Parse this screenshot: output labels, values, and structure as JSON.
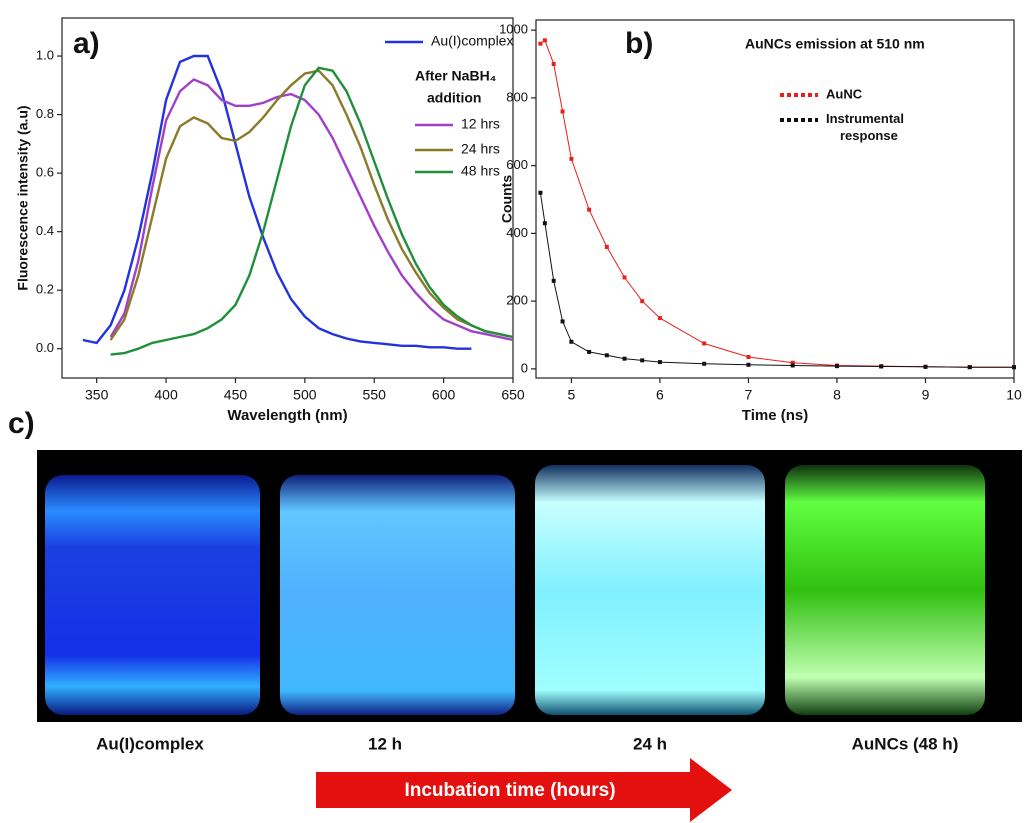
{
  "chart_data": [
    {
      "type": "line",
      "panel_label": "a)",
      "x_label": "Wavelength (nm)",
      "y_label": "Fluorescence intensity (a.u)",
      "xlim": [
        325,
        650
      ],
      "xticks": [
        350,
        400,
        450,
        500,
        550,
        600,
        650
      ],
      "ylim": [
        -0.1,
        1.13
      ],
      "yticks": [
        {
          "value": 0,
          "label": "0.0"
        },
        0.2,
        0.4,
        0.6,
        0.8,
        {
          "value": 1,
          "label": "1.0"
        }
      ],
      "legend_title": [
        "After NaBH₄",
        "addition"
      ],
      "x": [
        340,
        350,
        360,
        370,
        380,
        390,
        400,
        410,
        420,
        430,
        440,
        450,
        460,
        470,
        480,
        490,
        500,
        510,
        520,
        530,
        540,
        550,
        560,
        570,
        580,
        590,
        600,
        610,
        620,
        630,
        640,
        650
      ],
      "series": [
        {
          "name": "Au(I)complex",
          "color": "#2233dd",
          "values": [
            0.03,
            0.02,
            0.08,
            0.2,
            0.38,
            0.6,
            0.85,
            0.98,
            1.0,
            1.0,
            0.88,
            0.7,
            0.52,
            0.38,
            0.26,
            0.17,
            0.11,
            0.07,
            0.05,
            0.035,
            0.025,
            0.02,
            0.015,
            0.01,
            0.01,
            0.005,
            0.005,
            0.0,
            0.0,
            null,
            null,
            null
          ]
        },
        {
          "name": "12 hrs",
          "color": "#a040c8",
          "values": [
            null,
            null,
            0.04,
            0.12,
            0.3,
            0.55,
            0.78,
            0.88,
            0.92,
            0.9,
            0.85,
            0.83,
            0.83,
            0.84,
            0.86,
            0.87,
            0.85,
            0.8,
            0.72,
            0.62,
            0.52,
            0.42,
            0.33,
            0.25,
            0.19,
            0.14,
            0.1,
            0.08,
            0.06,
            0.05,
            0.04,
            0.03
          ]
        },
        {
          "name": "24 hrs",
          "color": "#8a7a2a",
          "values": [
            null,
            null,
            0.03,
            0.1,
            0.25,
            0.45,
            0.65,
            0.76,
            0.79,
            0.77,
            0.72,
            0.71,
            0.74,
            0.79,
            0.85,
            0.9,
            0.94,
            0.95,
            0.9,
            0.8,
            0.69,
            0.56,
            0.44,
            0.34,
            0.26,
            0.19,
            0.14,
            0.1,
            0.08,
            0.06,
            0.05,
            0.04
          ]
        },
        {
          "name": "48 hrs",
          "color": "#1f8f3a",
          "values": [
            null,
            null,
            -0.02,
            -0.015,
            0.0,
            0.02,
            0.03,
            0.04,
            0.05,
            0.07,
            0.1,
            0.15,
            0.25,
            0.4,
            0.58,
            0.76,
            0.9,
            0.96,
            0.95,
            0.88,
            0.77,
            0.64,
            0.51,
            0.39,
            0.29,
            0.21,
            0.15,
            0.11,
            0.08,
            0.06,
            0.05,
            0.04
          ]
        }
      ]
    },
    {
      "type": "line",
      "markers": true,
      "panel_label": "b)",
      "title": "AuNCs emission at 510 nm",
      "x_label": "Time (ns)",
      "y_label": "Counts",
      "xlim": [
        4.6,
        10
      ],
      "xticks": [
        5,
        6,
        7,
        8,
        9,
        10
      ],
      "ylim": [
        -27,
        1030
      ],
      "yticks": [
        0,
        200,
        400,
        600,
        800,
        1000
      ],
      "x": [
        4.65,
        4.7,
        4.8,
        4.9,
        5.0,
        5.2,
        5.4,
        5.6,
        5.8,
        6.0,
        6.5,
        7,
        7.5,
        8,
        8.5,
        9,
        9.5,
        10
      ],
      "series": [
        {
          "name": "AuNC",
          "color": "#e8201c",
          "values": [
            960,
            970,
            900,
            760,
            620,
            470,
            360,
            270,
            200,
            150,
            75,
            35,
            18,
            10,
            8,
            6,
            5,
            5
          ]
        },
        {
          "name": "Instrumental response",
          "color": "#111111",
          "values": [
            520,
            430,
            260,
            140,
            80,
            50,
            40,
            30,
            25,
            20,
            15,
            12,
            10,
            8,
            7,
            6,
            5,
            5
          ]
        }
      ]
    }
  ],
  "photo": {
    "panel_label": "c)",
    "captions": [
      "Au(I)complex",
      "12 h",
      "24 h",
      "AuNCs (48 h)"
    ],
    "arrow_text": "Incubation time (hours)"
  }
}
